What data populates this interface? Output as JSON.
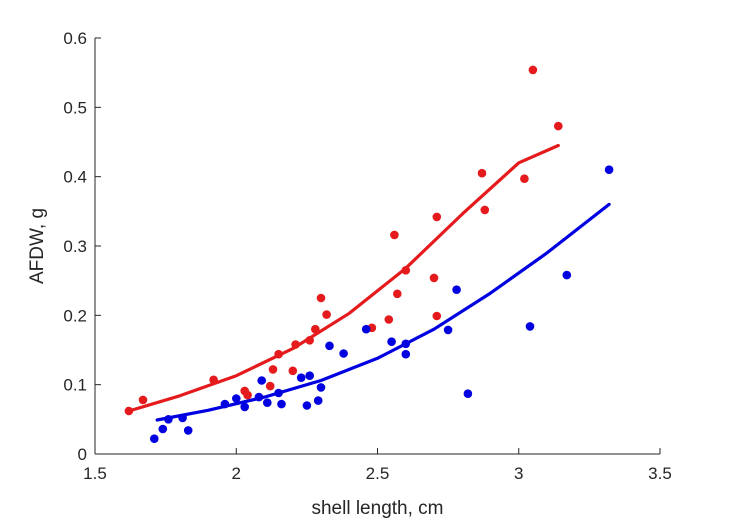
{
  "chart_data": {
    "type": "scatter",
    "xlabel": "shell length, cm",
    "ylabel": "AFDW, g",
    "xlim": [
      1.5,
      3.5
    ],
    "ylim": [
      0,
      0.6
    ],
    "xticks": [
      "1.5",
      "2",
      "2.5",
      "3",
      "3.5"
    ],
    "yticks": [
      "0",
      "0.1",
      "0.2",
      "0.3",
      "0.4",
      "0.5",
      "0.6"
    ],
    "grid": false,
    "legend": "none",
    "series": [
      {
        "color": "#e41a1c",
        "points": [
          [
            1.62,
            0.062
          ],
          [
            1.67,
            0.078
          ],
          [
            1.92,
            0.107
          ],
          [
            2.03,
            0.091
          ],
          [
            2.04,
            0.085
          ],
          [
            2.12,
            0.098
          ],
          [
            2.13,
            0.122
          ],
          [
            2.15,
            0.144
          ],
          [
            2.2,
            0.12
          ],
          [
            2.21,
            0.158
          ],
          [
            2.26,
            0.164
          ],
          [
            2.28,
            0.18
          ],
          [
            2.3,
            0.225
          ],
          [
            2.32,
            0.201
          ],
          [
            2.48,
            0.182
          ],
          [
            2.54,
            0.194
          ],
          [
            2.56,
            0.316
          ],
          [
            2.57,
            0.231
          ],
          [
            2.6,
            0.265
          ],
          [
            2.7,
            0.254
          ],
          [
            2.71,
            0.342
          ],
          [
            2.71,
            0.199
          ],
          [
            2.87,
            0.405
          ],
          [
            2.88,
            0.352
          ],
          [
            3.02,
            0.397
          ],
          [
            3.05,
            0.554
          ],
          [
            3.14,
            0.473
          ]
        ],
        "fit": [
          [
            1.62,
            0.062
          ],
          [
            1.8,
            0.084
          ],
          [
            2.0,
            0.113
          ],
          [
            2.2,
            0.152
          ],
          [
            2.4,
            0.203
          ],
          [
            2.6,
            0.268
          ],
          [
            2.8,
            0.346
          ],
          [
            3.0,
            0.42
          ],
          [
            3.14,
            0.445
          ]
        ]
      },
      {
        "color": "#0000e0",
        "points": [
          [
            1.71,
            0.022
          ],
          [
            1.74,
            0.036
          ],
          [
            1.76,
            0.05
          ],
          [
            1.81,
            0.052
          ],
          [
            1.83,
            0.034
          ],
          [
            1.96,
            0.072
          ],
          [
            2.0,
            0.08
          ],
          [
            2.03,
            0.068
          ],
          [
            2.08,
            0.082
          ],
          [
            2.09,
            0.106
          ],
          [
            2.11,
            0.074
          ],
          [
            2.15,
            0.088
          ],
          [
            2.16,
            0.072
          ],
          [
            2.23,
            0.11
          ],
          [
            2.25,
            0.07
          ],
          [
            2.26,
            0.113
          ],
          [
            2.29,
            0.077
          ],
          [
            2.3,
            0.096
          ],
          [
            2.33,
            0.156
          ],
          [
            2.38,
            0.145
          ],
          [
            2.46,
            0.18
          ],
          [
            2.55,
            0.162
          ],
          [
            2.6,
            0.159
          ],
          [
            2.6,
            0.144
          ],
          [
            2.75,
            0.179
          ],
          [
            2.78,
            0.237
          ],
          [
            2.82,
            0.087
          ],
          [
            3.04,
            0.184
          ],
          [
            3.17,
            0.258
          ],
          [
            3.32,
            0.41
          ]
        ],
        "fit": [
          [
            1.72,
            0.049
          ],
          [
            1.9,
            0.063
          ],
          [
            2.1,
            0.082
          ],
          [
            2.3,
            0.106
          ],
          [
            2.5,
            0.138
          ],
          [
            2.7,
            0.18
          ],
          [
            2.9,
            0.232
          ],
          [
            3.1,
            0.29
          ],
          [
            3.32,
            0.36
          ]
        ]
      }
    ]
  }
}
